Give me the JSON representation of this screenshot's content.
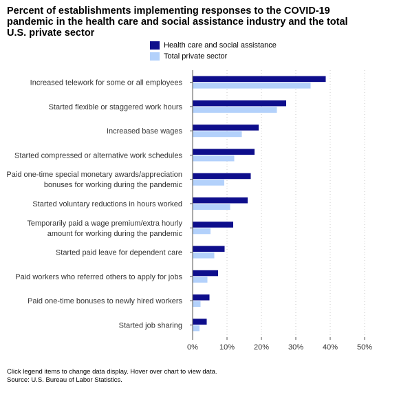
{
  "title_lines": [
    "Percent of establishments implementing responses to the COVID-19",
    "pandemic in the health care and social assistance industry and the total",
    "U.S. private sector"
  ],
  "footer": {
    "note": "Click legend items to change data display. Hover over chart to view data.",
    "source": "Source: U.S. Bureau of Labor Statistics."
  },
  "colors": {
    "health": "#0e0e8c",
    "total": "#b3d1fb",
    "grid": "#c8c8c8",
    "axis": "#555555"
  },
  "chart_data": {
    "type": "bar",
    "orientation": "horizontal",
    "categories": [
      [
        "Increased telework for some or all employees"
      ],
      [
        "Started flexible or staggered work hours"
      ],
      [
        "Increased base wages"
      ],
      [
        "Started compressed or alternative work schedules"
      ],
      [
        "Paid one-time special monetary awards/appreciation",
        "bonuses for working during the pandemic"
      ],
      [
        "Started voluntary reductions in hours worked"
      ],
      [
        "Temporarily paid a wage premium/extra hourly",
        "amount for working during the pandemic"
      ],
      [
        "Started paid leave for dependent care"
      ],
      [
        "Paid workers who referred others to apply for jobs"
      ],
      [
        "Paid one-time bonuses to newly hired workers"
      ],
      [
        "Started job sharing"
      ]
    ],
    "series": [
      {
        "name": "Health care and social assistance",
        "values": [
          38.7,
          27.2,
          19.2,
          18.0,
          16.9,
          16.0,
          11.8,
          9.3,
          7.4,
          4.9,
          4.1
        ]
      },
      {
        "name": "Total private sector",
        "values": [
          34.3,
          24.5,
          14.3,
          12.1,
          9.2,
          10.9,
          5.2,
          6.3,
          4.3,
          2.3,
          2.0
        ]
      }
    ],
    "xlim": [
      0,
      50
    ],
    "xticks": [
      0,
      10,
      20,
      30,
      40,
      50
    ],
    "xtick_labels": [
      "0%",
      "10%",
      "20%",
      "30%",
      "40%",
      "50%"
    ],
    "grid": "vertical dotted",
    "legend": "top"
  }
}
